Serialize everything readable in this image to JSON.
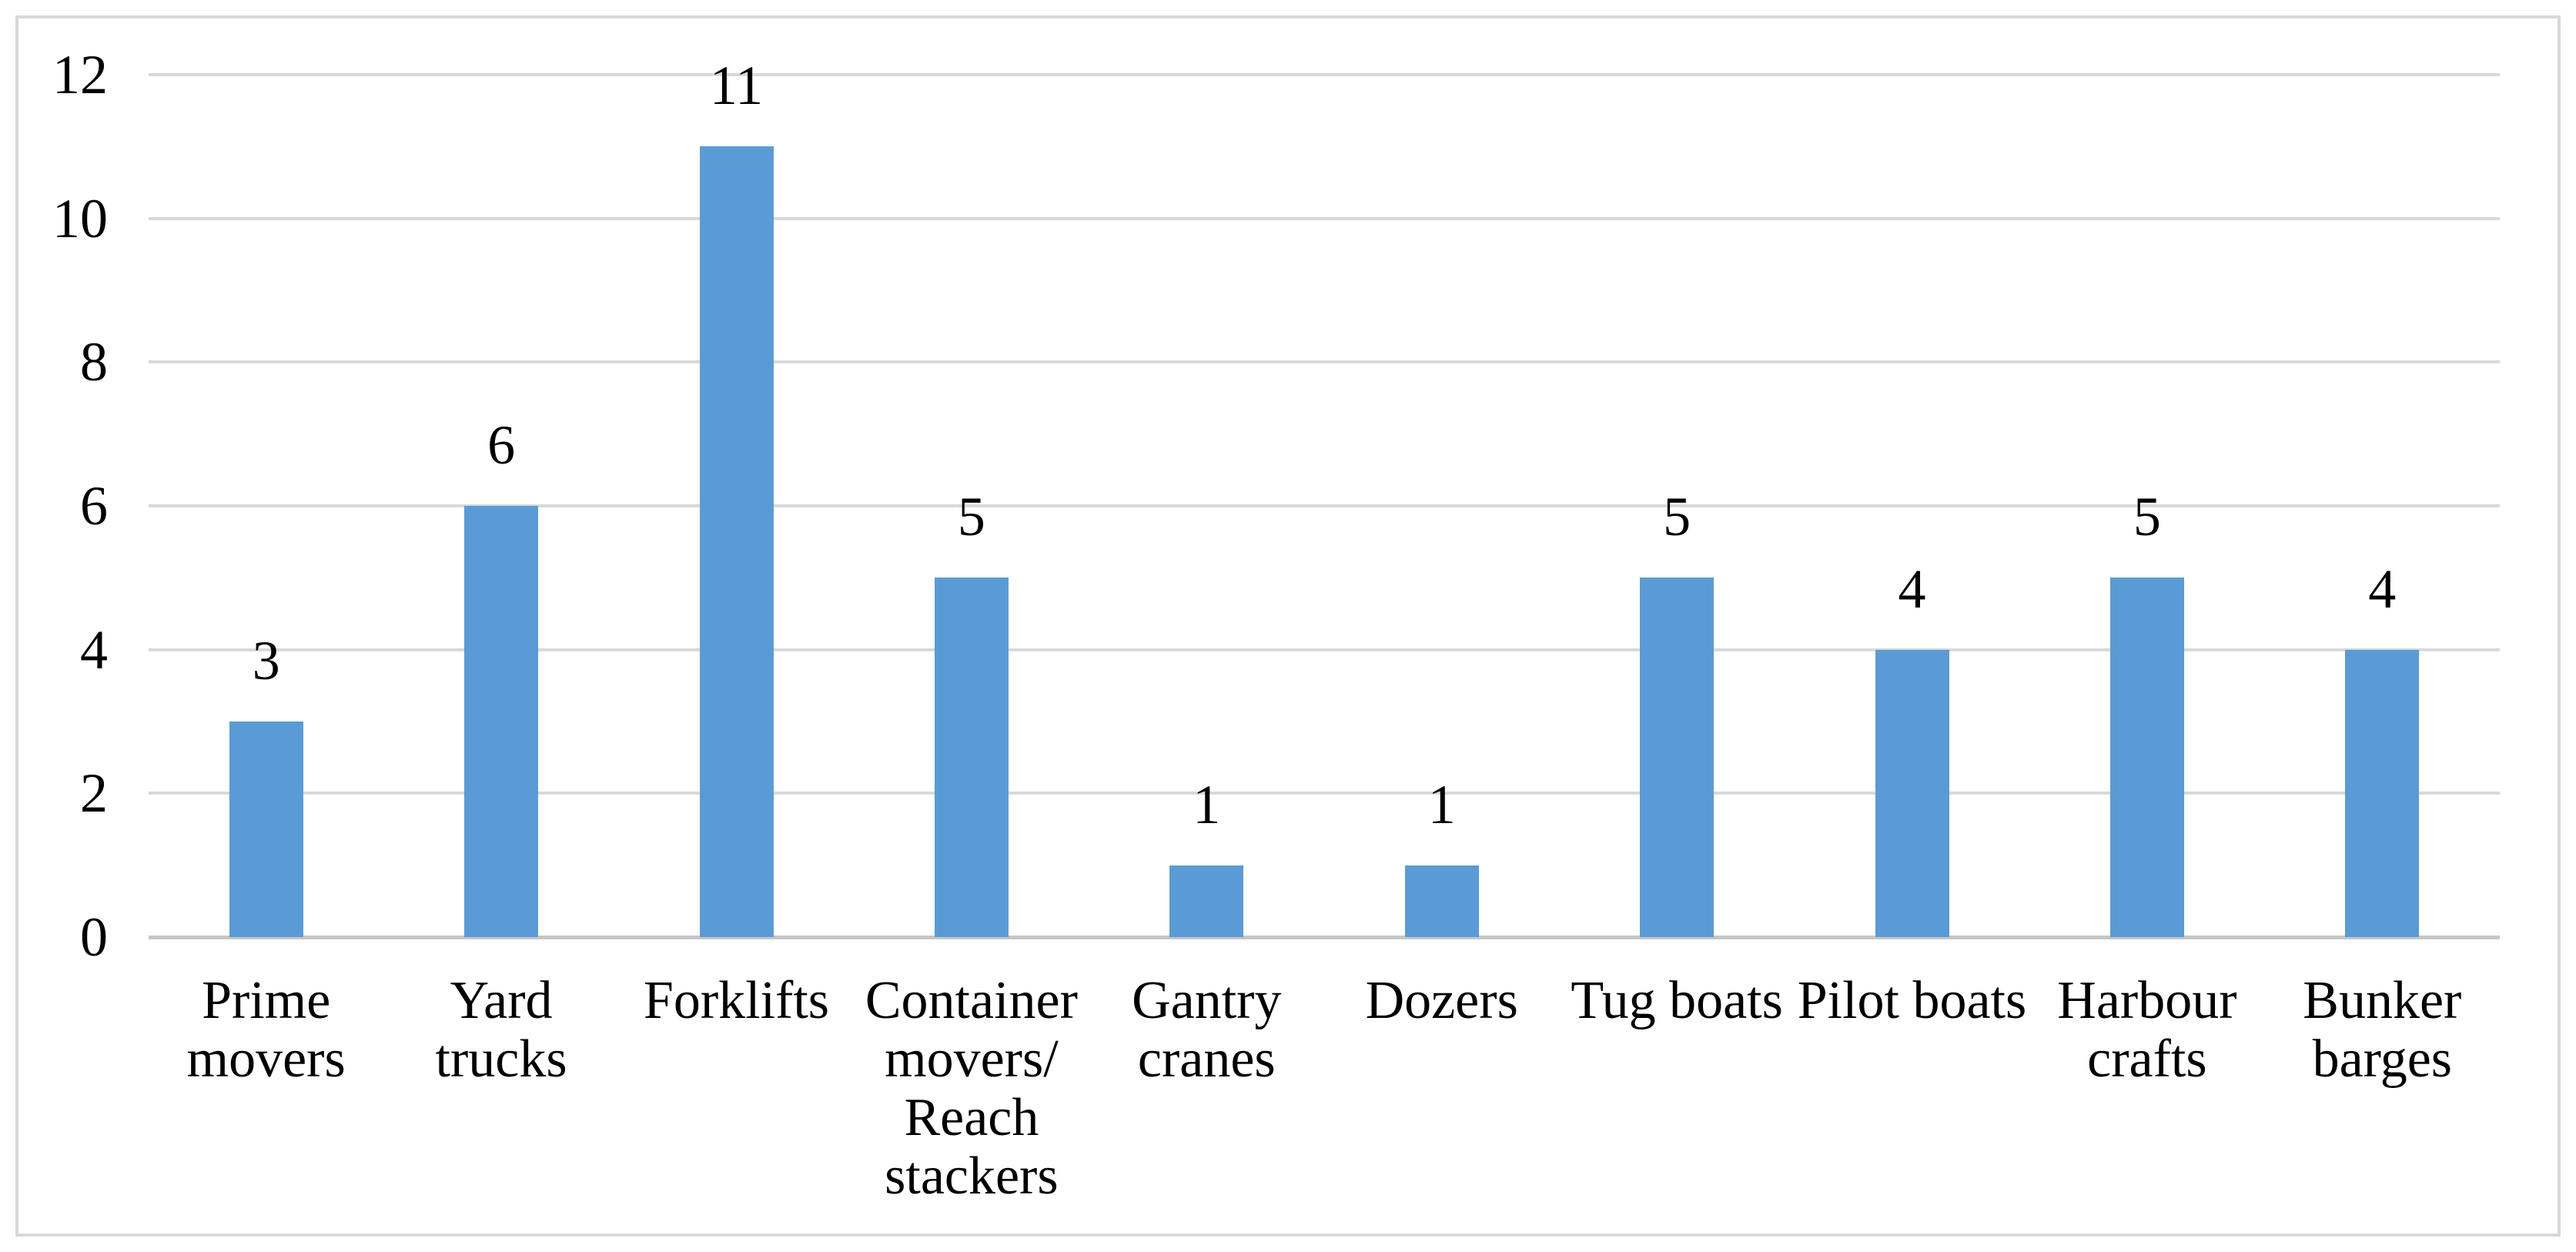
{
  "chart_data": {
    "type": "bar",
    "title": "",
    "xlabel": "",
    "ylabel": "",
    "categories": [
      "Prime movers",
      "Yard trucks",
      "Forklifts",
      "Container movers/ Reach stackers",
      "Gantry cranes",
      "Dozers",
      "Tug boats",
      "Pilot boats",
      "Harbour crafts",
      "Bunker barges"
    ],
    "category_display": [
      "Prime\nmovers",
      "Yard\ntrucks",
      "Forklifts",
      "Container\nmovers/\nReach\nstackers",
      "Gantry\ncranes",
      "Dozers",
      "Tug boats",
      "Pilot boats",
      "Harbour\ncrafts",
      "Bunker\nbarges"
    ],
    "values": [
      3,
      6,
      11,
      5,
      1,
      1,
      5,
      4,
      5,
      4
    ],
    "ylim": [
      0,
      12
    ],
    "yticks": [
      0,
      2,
      4,
      6,
      8,
      10,
      12
    ],
    "grid": true,
    "legend": false,
    "data_labels_shown": true,
    "colors": {
      "bar": "#5B9BD5",
      "gridline": "#D9D9D9",
      "axis_line": "#C6C6C6",
      "frame_border": "#D9D9D9",
      "text": "#000000",
      "background": "#FFFFFF"
    }
  }
}
